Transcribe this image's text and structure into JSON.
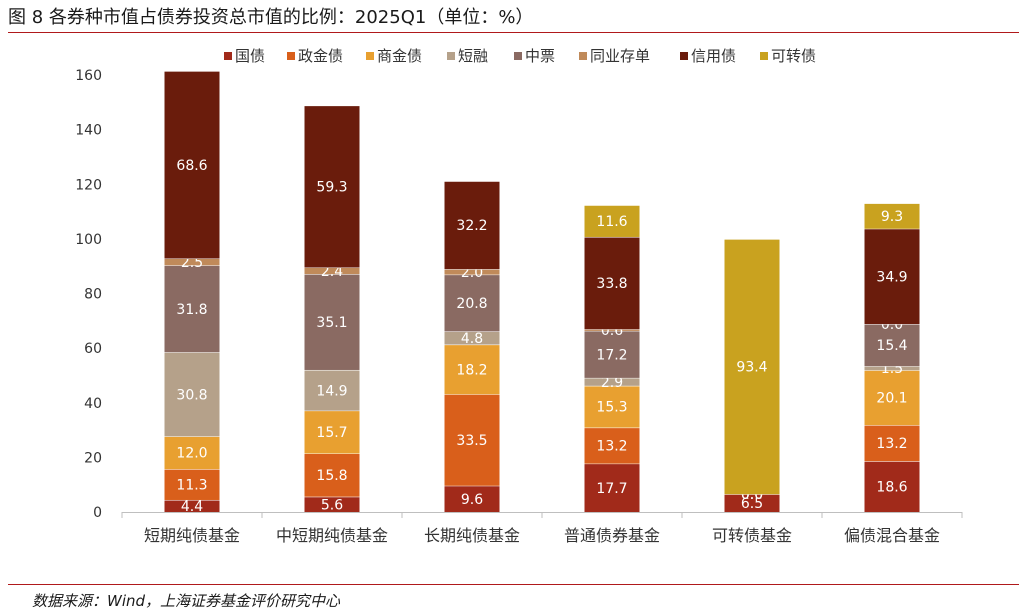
{
  "title": "图 8  各券种市值占债券投资总市值的比例：2025Q1（单位：%）",
  "source": "数据来源：Wind，上海证券基金评价研究中心",
  "colors": {
    "rule": "#b0191b",
    "series": [
      "#a12a1a",
      "#d95f1b",
      "#e8a030",
      "#b5a18a",
      "#8a6a62",
      "#c08a5a",
      "#6a1c0c",
      "#c9a21f"
    ]
  },
  "chart_data": {
    "type": "bar",
    "stacked": true,
    "legend_position": "top",
    "grid": false,
    "ylim": [
      0,
      160
    ],
    "yticks": [
      0,
      20,
      40,
      60,
      80,
      100,
      120,
      140,
      160
    ],
    "categories": [
      "短期纯债基金",
      "中短期纯债基金",
      "长期纯债基金",
      "普通债券基金",
      "可转债基金",
      "偏债混合基金"
    ],
    "series": [
      {
        "name": "国债",
        "values": [
          4.4,
          5.6,
          9.6,
          17.7,
          6.5,
          18.6
        ],
        "labels": [
          "4.4",
          "5.6",
          "9.6",
          "17.7",
          "6.5",
          "18.6"
        ]
      },
      {
        "name": "政金债",
        "values": [
          11.3,
          15.8,
          33.5,
          13.2,
          0.0,
          13.2
        ],
        "labels": [
          "11.3",
          "15.8",
          "33.5",
          "13.2",
          "0.0",
          "13.2"
        ]
      },
      {
        "name": "商金债",
        "values": [
          12.0,
          15.7,
          18.2,
          15.3,
          0.0,
          20.1
        ],
        "labels": [
          "12.0",
          "15.7",
          "18.2",
          "15.3",
          "0.0",
          "20.1"
        ]
      },
      {
        "name": "短融",
        "values": [
          30.8,
          14.9,
          4.8,
          2.9,
          0.0,
          1.5
        ],
        "labels": [
          "30.8",
          "14.9",
          "4.8",
          "2.9",
          "",
          "1.5"
        ]
      },
      {
        "name": "中票",
        "values": [
          31.8,
          35.1,
          20.8,
          17.2,
          0.0,
          15.4
        ],
        "labels": [
          "31.8",
          "35.1",
          "20.8",
          "17.2",
          "",
          "15.4"
        ]
      },
      {
        "name": "同业存单",
        "values": [
          2.5,
          2.4,
          2.0,
          0.6,
          0.0,
          0.0
        ],
        "labels": [
          "2.5",
          "2.4",
          "2.0",
          "0.6",
          "",
          "0.0"
        ]
      },
      {
        "name": "信用债",
        "values": [
          68.6,
          59.3,
          32.2,
          33.8,
          0.0,
          34.9
        ],
        "labels": [
          "68.6",
          "59.3",
          "32.2",
          "33.8",
          "",
          "34.9"
        ]
      },
      {
        "name": "可转债",
        "values": [
          0.0,
          0.0,
          0.0,
          11.6,
          93.4,
          9.3
        ],
        "labels": [
          "",
          "",
          "",
          "11.6",
          "93.4",
          "9.3"
        ]
      }
    ]
  }
}
